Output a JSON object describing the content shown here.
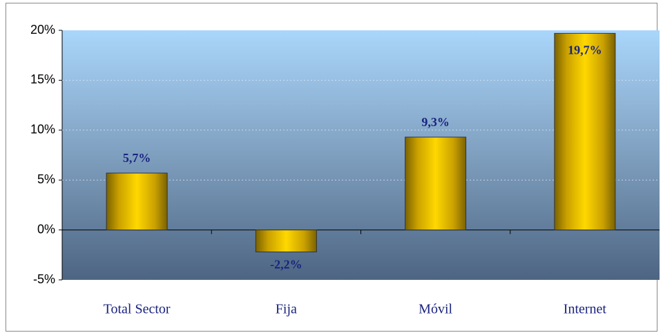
{
  "chart_data": {
    "type": "bar",
    "categories": [
      "Total Sector",
      "Fija",
      "Móvil",
      "Internet"
    ],
    "values": [
      5.7,
      -2.2,
      9.3,
      19.7
    ],
    "value_labels": [
      "5,7%",
      "-2,2%",
      "9,3%",
      "19,7%"
    ],
    "color": "#f5c400",
    "ylim": [
      -5,
      20
    ],
    "yticks": [
      {
        "value": -5,
        "label": "-5%"
      },
      {
        "value": 0,
        "label": "0%"
      },
      {
        "value": 5,
        "label": "5%"
      },
      {
        "value": 10,
        "label": "10%"
      },
      {
        "value": 15,
        "label": "15%"
      },
      {
        "value": 20,
        "label": "20%"
      }
    ],
    "grid": true
  }
}
